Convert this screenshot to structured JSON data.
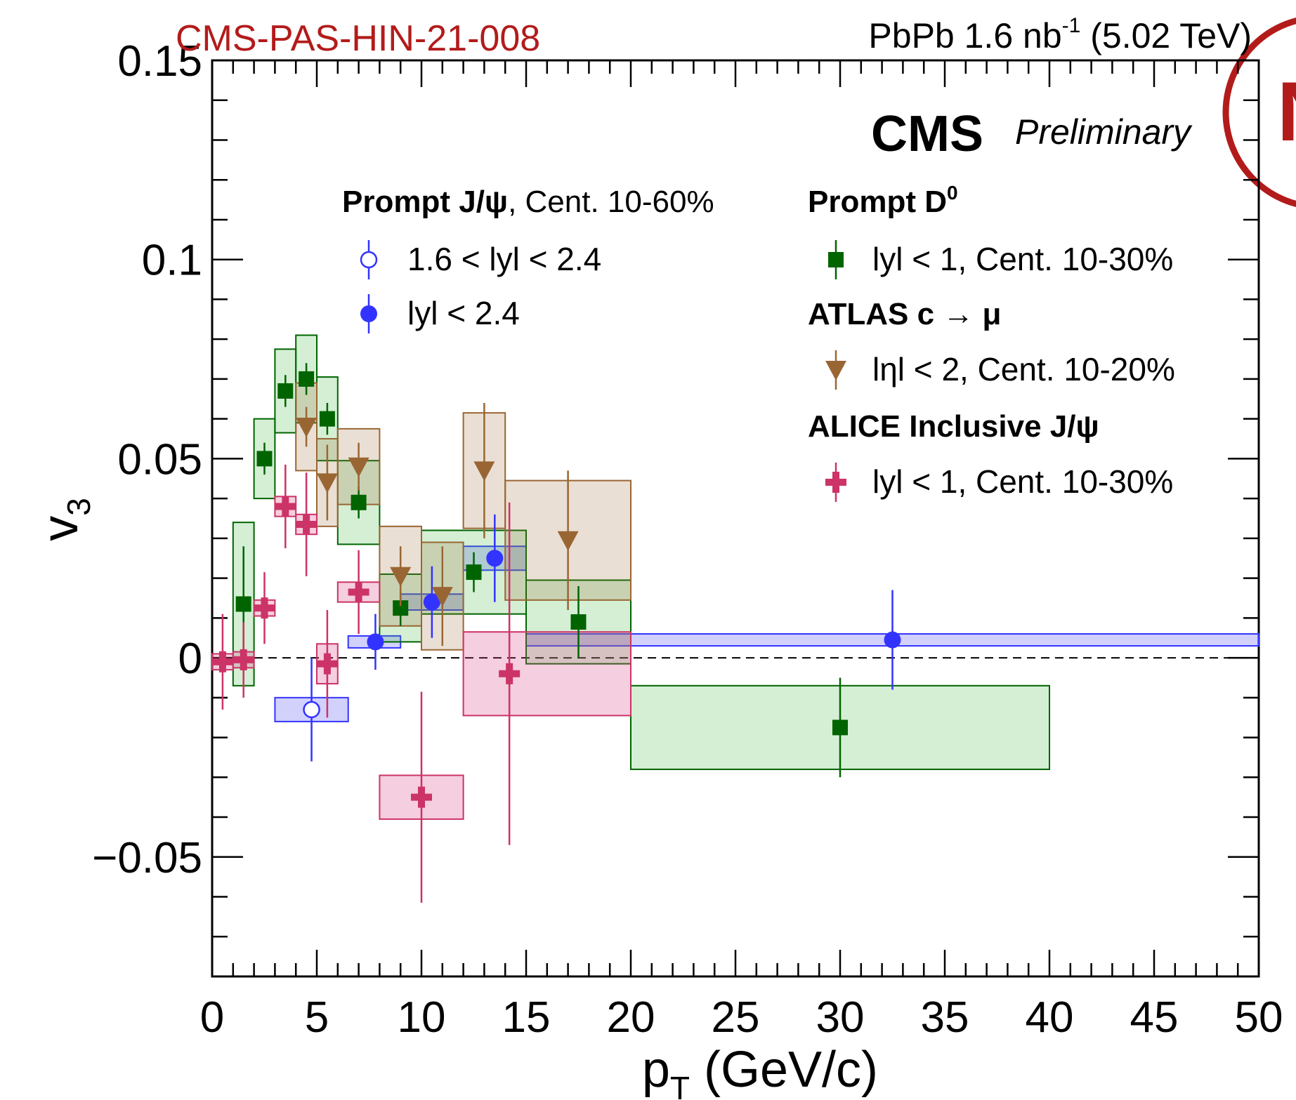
{
  "header": {
    "report_id": "CMS-PAS-HIN-21-008",
    "lumi_prefix": "PbPb 1.6 nb",
    "lumi_exp": "-1",
    "lumi_suffix": " (5.02 TeV)"
  },
  "badge": {
    "text": "CMS",
    "style": "Preliminary"
  },
  "colors": {
    "report_id": "#b31b1b",
    "jpsi_forward": "#3333ff",
    "jpsi_mid": "#3333ff",
    "d0": "#006400",
    "atlas": "#996633",
    "alice": "#cc3366",
    "stamp": "#b31b1b"
  },
  "legend": {
    "col1_heading_bold": "Prompt J/ψ",
    "col1_heading_rest": ", Cent. 10-60%",
    "col2_heading": "Prompt D",
    "col2_heading_sup": "0",
    "atlas_heading": "ATLAS c → μ",
    "alice_heading": "ALICE Inclusive J/ψ",
    "entries": [
      {
        "label": "1.6 < lyl < 2.4",
        "marker": "open-circle"
      },
      {
        "label": "lyl < 2.4",
        "marker": "filled-circle"
      },
      {
        "label": "lyl < 1, Cent. 10-30%",
        "marker": "square"
      },
      {
        "label": "lηl < 2, Cent. 10-20%",
        "marker": "down-triangle"
      },
      {
        "label": "lyl < 1, Cent. 10-30%",
        "marker": "cross"
      }
    ]
  },
  "chart_data": {
    "type": "scatter",
    "xlabel": "p",
    "xlabel_sub": "T",
    "xlabel_rest": " (GeV/c)",
    "ylabel": "v",
    "ylabel_sub": "3",
    "xlim": [
      0,
      50
    ],
    "ylim": [
      -0.08,
      0.15
    ],
    "xticks": [
      "0",
      "5",
      "10",
      "15",
      "20",
      "25",
      "30",
      "35",
      "40",
      "45",
      "50"
    ],
    "yticks": [
      "−0.05",
      "0",
      "0.05",
      "0.1",
      "0.15"
    ],
    "ytick_values": [
      -0.05,
      0,
      0.05,
      0.1,
      0.15
    ],
    "reference_line": 0,
    "series": [
      {
        "name": "Prompt J/ψ 1.6 < lyl < 2.4",
        "marker": "open-circle",
        "points": [
          {
            "x": 4.75,
            "y": -0.013,
            "stat": 0.013,
            "xlo": 3,
            "xhi": 6.5,
            "sys": 0.003
          }
        ]
      },
      {
        "name": "Prompt J/ψ lyl < 2.4",
        "marker": "filled-circle",
        "points": [
          {
            "x": 7.8,
            "y": 0.004,
            "stat": 0.007,
            "xlo": 6.5,
            "xhi": 9,
            "sys": 0.0015
          },
          {
            "x": 10.5,
            "y": 0.014,
            "stat": 0.009,
            "xlo": 9,
            "xhi": 12,
            "sys": 0.002
          },
          {
            "x": 13.5,
            "y": 0.025,
            "stat": 0.011,
            "xlo": 12,
            "xhi": 15,
            "sys": 0.003
          },
          {
            "x": 32.5,
            "y": 0.0045,
            "stat": 0.0125,
            "xlo": 15,
            "xhi": 50,
            "sys": 0.0015
          }
        ]
      },
      {
        "name": "Prompt D0 lyl < 1, Cent. 10-30%",
        "marker": "square",
        "points": [
          {
            "x": 1.5,
            "y": 0.0135,
            "stat": 0.0145,
            "xlo": 1,
            "xhi": 2,
            "sys": 0.0205
          },
          {
            "x": 2.5,
            "y": 0.05,
            "stat": 0.004,
            "xlo": 2,
            "xhi": 3,
            "sys": 0.01
          },
          {
            "x": 3.5,
            "y": 0.067,
            "stat": 0.004,
            "xlo": 3,
            "xhi": 4,
            "sys": 0.0105
          },
          {
            "x": 4.5,
            "y": 0.07,
            "stat": 0.004,
            "xlo": 4,
            "xhi": 5,
            "sys": 0.011
          },
          {
            "x": 5.5,
            "y": 0.06,
            "stat": 0.004,
            "xlo": 5,
            "xhi": 6,
            "sys": 0.0105
          },
          {
            "x": 7,
            "y": 0.039,
            "stat": 0.004,
            "xlo": 6,
            "xhi": 8,
            "sys": 0.0105
          },
          {
            "x": 9,
            "y": 0.0125,
            "stat": 0.0045,
            "xlo": 8,
            "xhi": 10,
            "sys": 0.0085
          },
          {
            "x": 12.5,
            "y": 0.0215,
            "stat": 0.005,
            "xlo": 10,
            "xhi": 15,
            "sys": 0.0105
          },
          {
            "x": 17.5,
            "y": 0.009,
            "stat": 0.009,
            "xlo": 15,
            "xhi": 20,
            "sys": 0.0105
          },
          {
            "x": 30,
            "y": -0.0175,
            "stat": 0.0125,
            "xlo": 20,
            "xhi": 40,
            "sys": 0.0105
          }
        ]
      },
      {
        "name": "ATLAS c → μ lηl < 2, Cent. 10-20%",
        "marker": "down-triangle",
        "points": [
          {
            "x": 4.5,
            "y": 0.058,
            "stat": 0.005,
            "xlo": 4,
            "xhi": 5,
            "sys": 0.011
          },
          {
            "x": 5.5,
            "y": 0.044,
            "stat": 0.0095,
            "xlo": 5,
            "xhi": 6,
            "sys": 0.011
          },
          {
            "x": 7,
            "y": 0.048,
            "stat": 0.006,
            "xlo": 6,
            "xhi": 8,
            "sys": 0.0095
          },
          {
            "x": 9,
            "y": 0.0205,
            "stat": 0.0075,
            "xlo": 8,
            "xhi": 10,
            "sys": 0.0125
          },
          {
            "x": 11,
            "y": 0.0155,
            "stat": 0.0125,
            "xlo": 10,
            "xhi": 12,
            "sys": 0.0135
          },
          {
            "x": 13,
            "y": 0.047,
            "stat": 0.017,
            "xlo": 12,
            "xhi": 14,
            "sys": 0.0145
          },
          {
            "x": 17,
            "y": 0.0295,
            "stat": 0.0175,
            "xlo": 14,
            "xhi": 20,
            "sys": 0.015
          }
        ]
      },
      {
        "name": "ALICE Inclusive J/ψ lyl < 1, Cent. 10-30%",
        "marker": "cross",
        "points": [
          {
            "x": 0.5,
            "y": -0.001,
            "stat": 0.012,
            "xlo": 0,
            "xhi": 1,
            "sys": 0.002
          },
          {
            "x": 1.5,
            "y": -0.0005,
            "stat": 0.0095,
            "xlo": 1,
            "xhi": 2,
            "sys": 0.002
          },
          {
            "x": 2.5,
            "y": 0.0125,
            "stat": 0.009,
            "xlo": 2,
            "xhi": 3,
            "sys": 0.002
          },
          {
            "x": 3.5,
            "y": 0.038,
            "stat": 0.0105,
            "xlo": 3,
            "xhi": 4,
            "sys": 0.0025
          },
          {
            "x": 4.5,
            "y": 0.0335,
            "stat": 0.013,
            "xlo": 4,
            "xhi": 5,
            "sys": 0.0025
          },
          {
            "x": 5.5,
            "y": -0.0015,
            "stat": 0.0135,
            "xlo": 5,
            "xhi": 6,
            "sys": 0.005
          },
          {
            "x": 7,
            "y": 0.0165,
            "stat": 0.0105,
            "xlo": 6,
            "xhi": 8,
            "sys": 0.0025
          },
          {
            "x": 10,
            "y": -0.035,
            "stat": 0.0265,
            "xlo": 8,
            "xhi": 12,
            "sys": 0.0055
          },
          {
            "x": 14.2,
            "y": -0.004,
            "stat": 0.043,
            "xlo": 12,
            "xhi": 20,
            "sys": 0.0105
          }
        ]
      }
    ]
  }
}
